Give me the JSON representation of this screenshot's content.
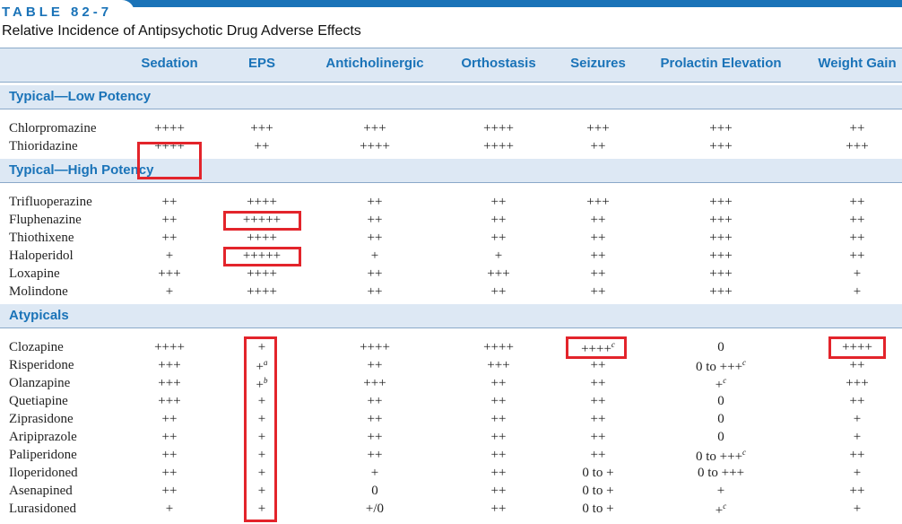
{
  "table": {
    "number": "TABLE 82-7",
    "title": "Relative Incidence of Antipsychotic Drug Adverse Effects",
    "columns": [
      "Sedation",
      "EPS",
      "Anticholinergic",
      "Orthostasis",
      "Seizures",
      "Prolactin Elevation",
      "Weight Gain"
    ],
    "sections": [
      {
        "label": "Typical—Low Potency",
        "rows": [
          {
            "drug": "Chlorpromazine",
            "values": [
              "++++",
              "+++",
              "+++",
              "++++",
              "+++",
              "+++",
              "++"
            ]
          },
          {
            "drug": "Thioridazine",
            "values": [
              "++++",
              "++",
              "++++",
              "++++",
              "++",
              "+++",
              "+++"
            ]
          }
        ]
      },
      {
        "label": "Typical—High Potency",
        "rows": [
          {
            "drug": "Trifluoperazine",
            "values": [
              "++",
              "++++",
              "++",
              "++",
              "+++",
              "+++",
              "++"
            ]
          },
          {
            "drug": "Fluphenazine",
            "values": [
              "++",
              "+++++",
              "++",
              "++",
              "++",
              "+++",
              "++"
            ]
          },
          {
            "drug": "Thiothixene",
            "values": [
              "++",
              "++++",
              "++",
              "++",
              "++",
              "+++",
              "++"
            ]
          },
          {
            "drug": "Haloperidol",
            "values": [
              "+",
              "+++++",
              "+",
              "+",
              "++",
              "+++",
              "++"
            ]
          },
          {
            "drug": "Loxapine",
            "values": [
              "+++",
              "++++",
              "++",
              "+++",
              "++",
              "+++",
              "+"
            ]
          },
          {
            "drug": "Molindone",
            "values": [
              "+",
              "++++",
              "++",
              "++",
              "++",
              "+++",
              "+"
            ]
          }
        ]
      },
      {
        "label": "Atypicals",
        "rows": [
          {
            "drug": "Clozapine",
            "values": [
              "++++",
              "+",
              "++++",
              "++++",
              "++++c",
              "0",
              "++++"
            ]
          },
          {
            "drug": "Risperidone",
            "values": [
              "+++",
              "+a",
              "++",
              "+++",
              "++",
              "0 to +++c",
              "++"
            ]
          },
          {
            "drug": "Olanzapine",
            "values": [
              "+++",
              "+b",
              "+++",
              "++",
              "++",
              "+c",
              "+++"
            ]
          },
          {
            "drug": "Quetiapine",
            "values": [
              "+++",
              "+",
              "++",
              "++",
              "++",
              "0",
              "++"
            ]
          },
          {
            "drug": "Ziprasidone",
            "values": [
              "++",
              "+",
              "++",
              "++",
              "++",
              "0",
              "+"
            ]
          },
          {
            "drug": "Aripiprazole",
            "values": [
              "++",
              "+",
              "++",
              "++",
              "++",
              "0",
              "+"
            ]
          },
          {
            "drug": "Paliperidone",
            "values": [
              "++",
              "+",
              "++",
              "++",
              "++",
              "0 to +++c",
              "++"
            ]
          },
          {
            "drug": "Iloperidoned",
            "values": [
              "++",
              "+",
              "+",
              "++",
              "0 to +",
              "0 to +++",
              "+"
            ]
          },
          {
            "drug": "Asenapined",
            "values": [
              "++",
              "+",
              "0",
              "++",
              "0 to +",
              "+",
              "++"
            ]
          },
          {
            "drug": "Lurasidoned",
            "values": [
              "+",
              "+",
              "+/0",
              "++",
              "0 to +",
              "+c",
              "+"
            ]
          }
        ]
      }
    ]
  },
  "colors": {
    "accent": "#1a73b8",
    "band": "#dde8f4",
    "highlight": "#e3242b"
  }
}
